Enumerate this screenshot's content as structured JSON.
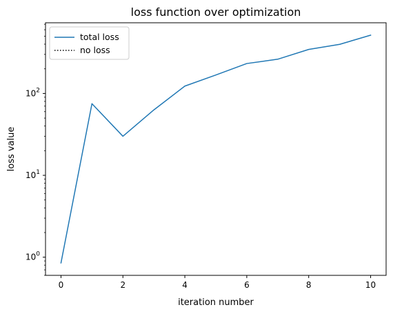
{
  "chart_data": {
    "type": "line",
    "title": "loss function over optimization",
    "xlabel": "iteration number",
    "ylabel": "loss value",
    "yscale": "log",
    "xlim": [
      -0.5,
      10.5
    ],
    "ylim": [
      0.6,
      730
    ],
    "grid": false,
    "legend_position": "top-left",
    "x_ticks": [
      0,
      2,
      4,
      6,
      8,
      10
    ],
    "x_tick_labels": [
      "0",
      "2",
      "4",
      "6",
      "8",
      "10"
    ],
    "y_ticks": [
      1,
      10,
      100
    ],
    "y_tick_labels": [
      {
        "base": "10",
        "exp": "0"
      },
      {
        "base": "10",
        "exp": "1"
      },
      {
        "base": "10",
        "exp": "2"
      }
    ],
    "series": [
      {
        "name": "total loss",
        "color": "#1f77b4",
        "style": "solid",
        "x": [
          0,
          1,
          2,
          3,
          4,
          5,
          6,
          7,
          8,
          9,
          10
        ],
        "y": [
          0.85,
          75,
          30,
          63,
          123,
          168,
          232,
          262,
          345,
          398,
          515
        ]
      },
      {
        "name": "no loss",
        "color": "#000000",
        "style": "dotted",
        "x": [],
        "y": []
      }
    ]
  }
}
